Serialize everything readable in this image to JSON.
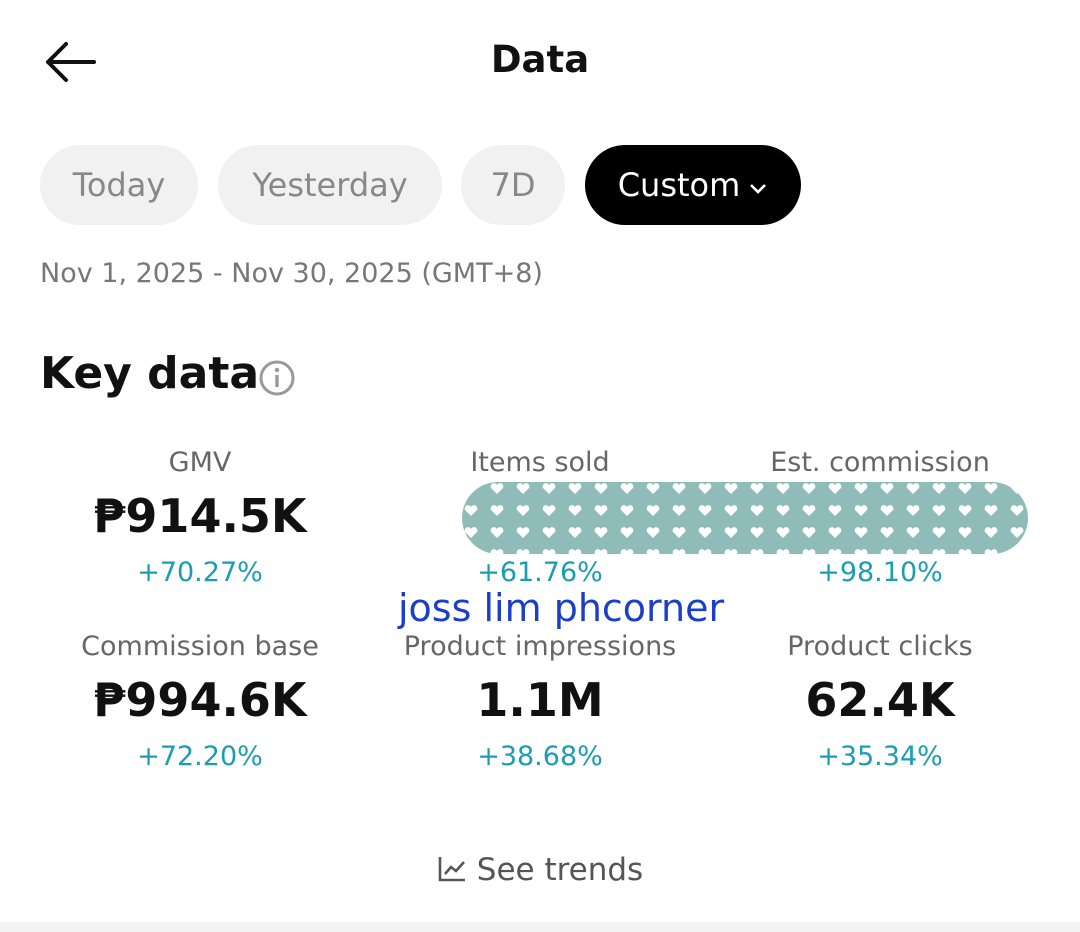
{
  "header": {
    "title": "Data"
  },
  "tabs": [
    "Today",
    "Yesterday",
    "7D",
    "Custom"
  ],
  "date_range": "Nov 1, 2025 - Nov 30, 2025 (GMT+8)",
  "section_title": "Key data",
  "metrics": [
    {
      "label": "GMV",
      "value": "₱914.5K",
      "change": "+70.27%"
    },
    {
      "label": "Items sold",
      "change": "+61.76%"
    },
    {
      "label": "Est. commission",
      "change": "+98.10%"
    },
    {
      "label": "Commission base",
      "value": "₱994.6K",
      "change": "+72.20%"
    },
    {
      "label": "Product impressions",
      "value": "1.1M",
      "change": "+38.68%"
    },
    {
      "label": "Product clicks",
      "value": "62.4K",
      "change": "+35.34%"
    }
  ],
  "watermark": "joss lim phcorner",
  "link": "See trends"
}
